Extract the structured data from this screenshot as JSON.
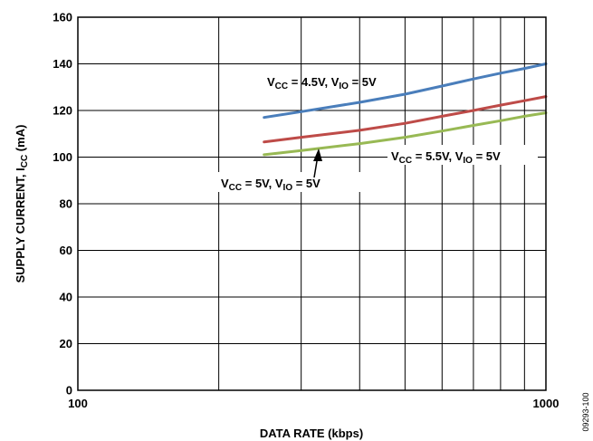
{
  "chart_data": {
    "type": "line",
    "xlabel": "DATA RATE (kbps)",
    "ylabel": {
      "main": "SUPPLY CURRENT, I",
      "sub": "CC",
      "tail": " (mA)"
    },
    "x_scale": "log",
    "xlim": [
      100,
      1000
    ],
    "ylim": [
      0,
      160
    ],
    "x_ticks": [
      100,
      1000
    ],
    "x_tick_labels": [
      "100",
      "1000"
    ],
    "y_ticks": [
      0,
      20,
      40,
      60,
      80,
      100,
      120,
      140,
      160
    ],
    "y_tick_labels": [
      "0",
      "20",
      "40",
      "60",
      "80",
      "100",
      "120",
      "140",
      "160"
    ],
    "grid": true,
    "figure_id": "09293-100",
    "series": [
      {
        "name": "VCC = 4.5V, VIO = 5V",
        "color": "#4a7ebb",
        "x": [
          250,
          300,
          400,
          500,
          600,
          700,
          800,
          900,
          1000
        ],
        "y": [
          117,
          119.5,
          123.5,
          127,
          130.5,
          133.5,
          136,
          138,
          140
        ]
      },
      {
        "name": "VCC = 5V, VIO = 5V",
        "color": "#be4b48",
        "x": [
          250,
          300,
          400,
          500,
          600,
          700,
          800,
          900,
          1000
        ],
        "y": [
          106.5,
          108.5,
          111.5,
          114.5,
          117.5,
          120,
          122.3,
          124.2,
          126
        ]
      },
      {
        "name": "VCC = 5.5V, VIO = 5V",
        "color": "#98b954",
        "x": [
          250,
          300,
          400,
          500,
          600,
          700,
          800,
          900,
          1000
        ],
        "y": [
          101,
          102.8,
          105.8,
          108.5,
          111.2,
          113.6,
          115.6,
          117.5,
          119
        ]
      }
    ],
    "annotations": [
      {
        "parts": [
          [
            "V",
            ""
          ],
          [
            "CC",
            "sub"
          ],
          [
            " = 4.5V, V",
            ""
          ],
          [
            "IO",
            "sub"
          ],
          [
            " = 5V",
            ""
          ]
        ]
      },
      {
        "parts": [
          [
            "V",
            ""
          ],
          [
            "CC",
            "sub"
          ],
          [
            " = 5.5V, V",
            ""
          ],
          [
            "IO",
            "sub"
          ],
          [
            " = 5V",
            ""
          ]
        ]
      },
      {
        "parts": [
          [
            "V",
            ""
          ],
          [
            "CC",
            "sub"
          ],
          [
            " = 5V, V",
            ""
          ],
          [
            "IO",
            "sub"
          ],
          [
            " = 5V",
            ""
          ]
        ]
      }
    ]
  }
}
